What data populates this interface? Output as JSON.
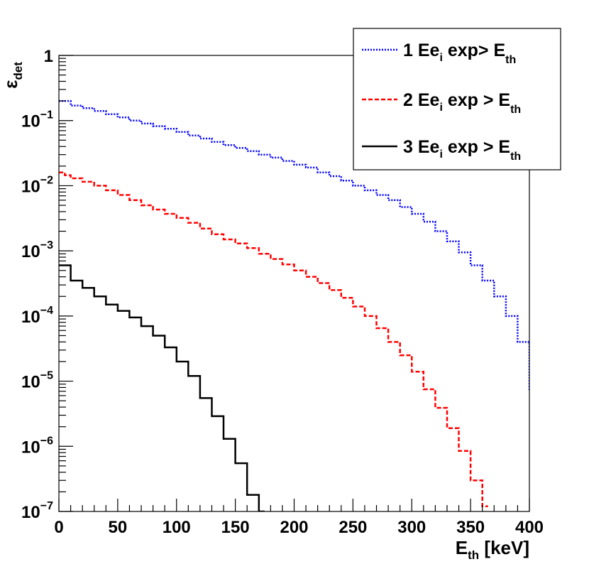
{
  "chart_data": {
    "type": "line",
    "step": true,
    "xlabel": {
      "main": "E",
      "sub": "th",
      "rest": " [keV]"
    },
    "ylabel": {
      "main": "ε",
      "sub": "det"
    },
    "xlim": [
      0,
      400
    ],
    "ylim": [
      1e-07,
      1
    ],
    "ylog": true,
    "grid": false,
    "legend_position": "top-right",
    "x_ticks": [
      0,
      50,
      100,
      150,
      200,
      250,
      300,
      350,
      400
    ],
    "x_tick_labels": [
      "0",
      "50",
      "100",
      "150",
      "200",
      "250",
      "300",
      "350",
      "400"
    ],
    "y_ticks": [
      {
        "value": 1,
        "base": "1",
        "exp": ""
      },
      {
        "value": 0.1,
        "base": "10",
        "exp": "−1"
      },
      {
        "value": 0.01,
        "base": "10",
        "exp": "−2"
      },
      {
        "value": 0.001,
        "base": "10",
        "exp": "−3"
      },
      {
        "value": 0.0001,
        "base": "10",
        "exp": "−4"
      },
      {
        "value": 1e-05,
        "base": "10",
        "exp": "−5"
      },
      {
        "value": 1e-06,
        "base": "10",
        "exp": "−6"
      },
      {
        "value": 1e-07,
        "base": "10",
        "exp": "−7"
      }
    ],
    "series": [
      {
        "id": "one",
        "legend": {
          "pre": "1 Ee",
          "sub": "i",
          "mid": " exp> E",
          "sub2": "th"
        },
        "color": "#0000ff",
        "dash": "2,2",
        "points": [
          [
            0,
            0.2
          ],
          [
            10,
            0.17
          ],
          [
            20,
            0.155
          ],
          [
            30,
            0.14
          ],
          [
            40,
            0.125
          ],
          [
            50,
            0.112
          ],
          [
            60,
            0.1
          ],
          [
            70,
            0.09
          ],
          [
            80,
            0.082
          ],
          [
            90,
            0.075
          ],
          [
            100,
            0.067
          ],
          [
            110,
            0.059
          ],
          [
            120,
            0.053
          ],
          [
            130,
            0.047
          ],
          [
            140,
            0.042
          ],
          [
            150,
            0.038
          ],
          [
            160,
            0.034
          ],
          [
            170,
            0.03
          ],
          [
            180,
            0.027
          ],
          [
            190,
            0.024
          ],
          [
            200,
            0.021
          ],
          [
            210,
            0.019
          ],
          [
            220,
            0.016
          ],
          [
            230,
            0.014
          ],
          [
            240,
            0.012
          ],
          [
            250,
            0.01
          ],
          [
            260,
            0.0085
          ],
          [
            270,
            0.0072
          ],
          [
            280,
            0.006
          ],
          [
            290,
            0.0047
          ],
          [
            300,
            0.0037
          ],
          [
            310,
            0.0028
          ],
          [
            320,
            0.002
          ],
          [
            330,
            0.0014
          ],
          [
            340,
            0.00095
          ],
          [
            350,
            0.0006
          ],
          [
            360,
            0.00035
          ],
          [
            370,
            0.0002
          ],
          [
            380,
            0.0001
          ],
          [
            390,
            4e-05
          ],
          [
            400,
            7.5e-06
          ]
        ]
      },
      {
        "id": "two",
        "legend": {
          "pre": "2 Ee",
          "sub": "i",
          "mid": " exp > E",
          "sub2": "th"
        },
        "color": "#ff0000",
        "dash": "6,3",
        "points": [
          [
            0,
            0.016
          ],
          [
            5,
            0.0145
          ],
          [
            10,
            0.013
          ],
          [
            20,
            0.0115
          ],
          [
            30,
            0.01
          ],
          [
            40,
            0.0085
          ],
          [
            50,
            0.0072
          ],
          [
            60,
            0.006
          ],
          [
            70,
            0.005
          ],
          [
            80,
            0.0043
          ],
          [
            90,
            0.0037
          ],
          [
            100,
            0.0032
          ],
          [
            110,
            0.0027
          ],
          [
            120,
            0.0022
          ],
          [
            130,
            0.0018
          ],
          [
            140,
            0.0015
          ],
          [
            150,
            0.0013
          ],
          [
            160,
            0.0011
          ],
          [
            170,
            0.0009
          ],
          [
            180,
            0.00075
          ],
          [
            190,
            0.00062
          ],
          [
            200,
            0.0005
          ],
          [
            210,
            0.0004
          ],
          [
            220,
            0.00032
          ],
          [
            230,
            0.00025
          ],
          [
            240,
            0.00019
          ],
          [
            250,
            0.00014
          ],
          [
            260,
            0.0001
          ],
          [
            270,
            6.5e-05
          ],
          [
            280,
            4e-05
          ],
          [
            290,
            2.5e-05
          ],
          [
            300,
            1.4e-05
          ],
          [
            310,
            7.5e-06
          ],
          [
            320,
            3.9e-06
          ],
          [
            330,
            1.9e-06
          ],
          [
            340,
            8.5e-07
          ],
          [
            350,
            3e-07
          ],
          [
            360,
            1.2e-07
          ]
        ]
      },
      {
        "id": "three",
        "legend": {
          "pre": "3 Ee",
          "sub": "i",
          "mid": " exp > E",
          "sub2": "th"
        },
        "color": "#000000",
        "dash": "",
        "points": [
          [
            0,
            0.0006
          ],
          [
            10,
            0.00035
          ],
          [
            20,
            0.00027
          ],
          [
            30,
            0.0002
          ],
          [
            40,
            0.00015
          ],
          [
            50,
            0.00012
          ],
          [
            60,
            9.5e-05
          ],
          [
            70,
            7e-05
          ],
          [
            80,
            5e-05
          ],
          [
            90,
            3.3e-05
          ],
          [
            100,
            2e-05
          ],
          [
            110,
            1.2e-05
          ],
          [
            120,
            5.5e-06
          ],
          [
            130,
            2.9e-06
          ],
          [
            140,
            1.3e-06
          ],
          [
            150,
            5.5e-07
          ],
          [
            160,
            1.8e-07
          ],
          [
            170,
            1e-07
          ]
        ]
      }
    ]
  }
}
